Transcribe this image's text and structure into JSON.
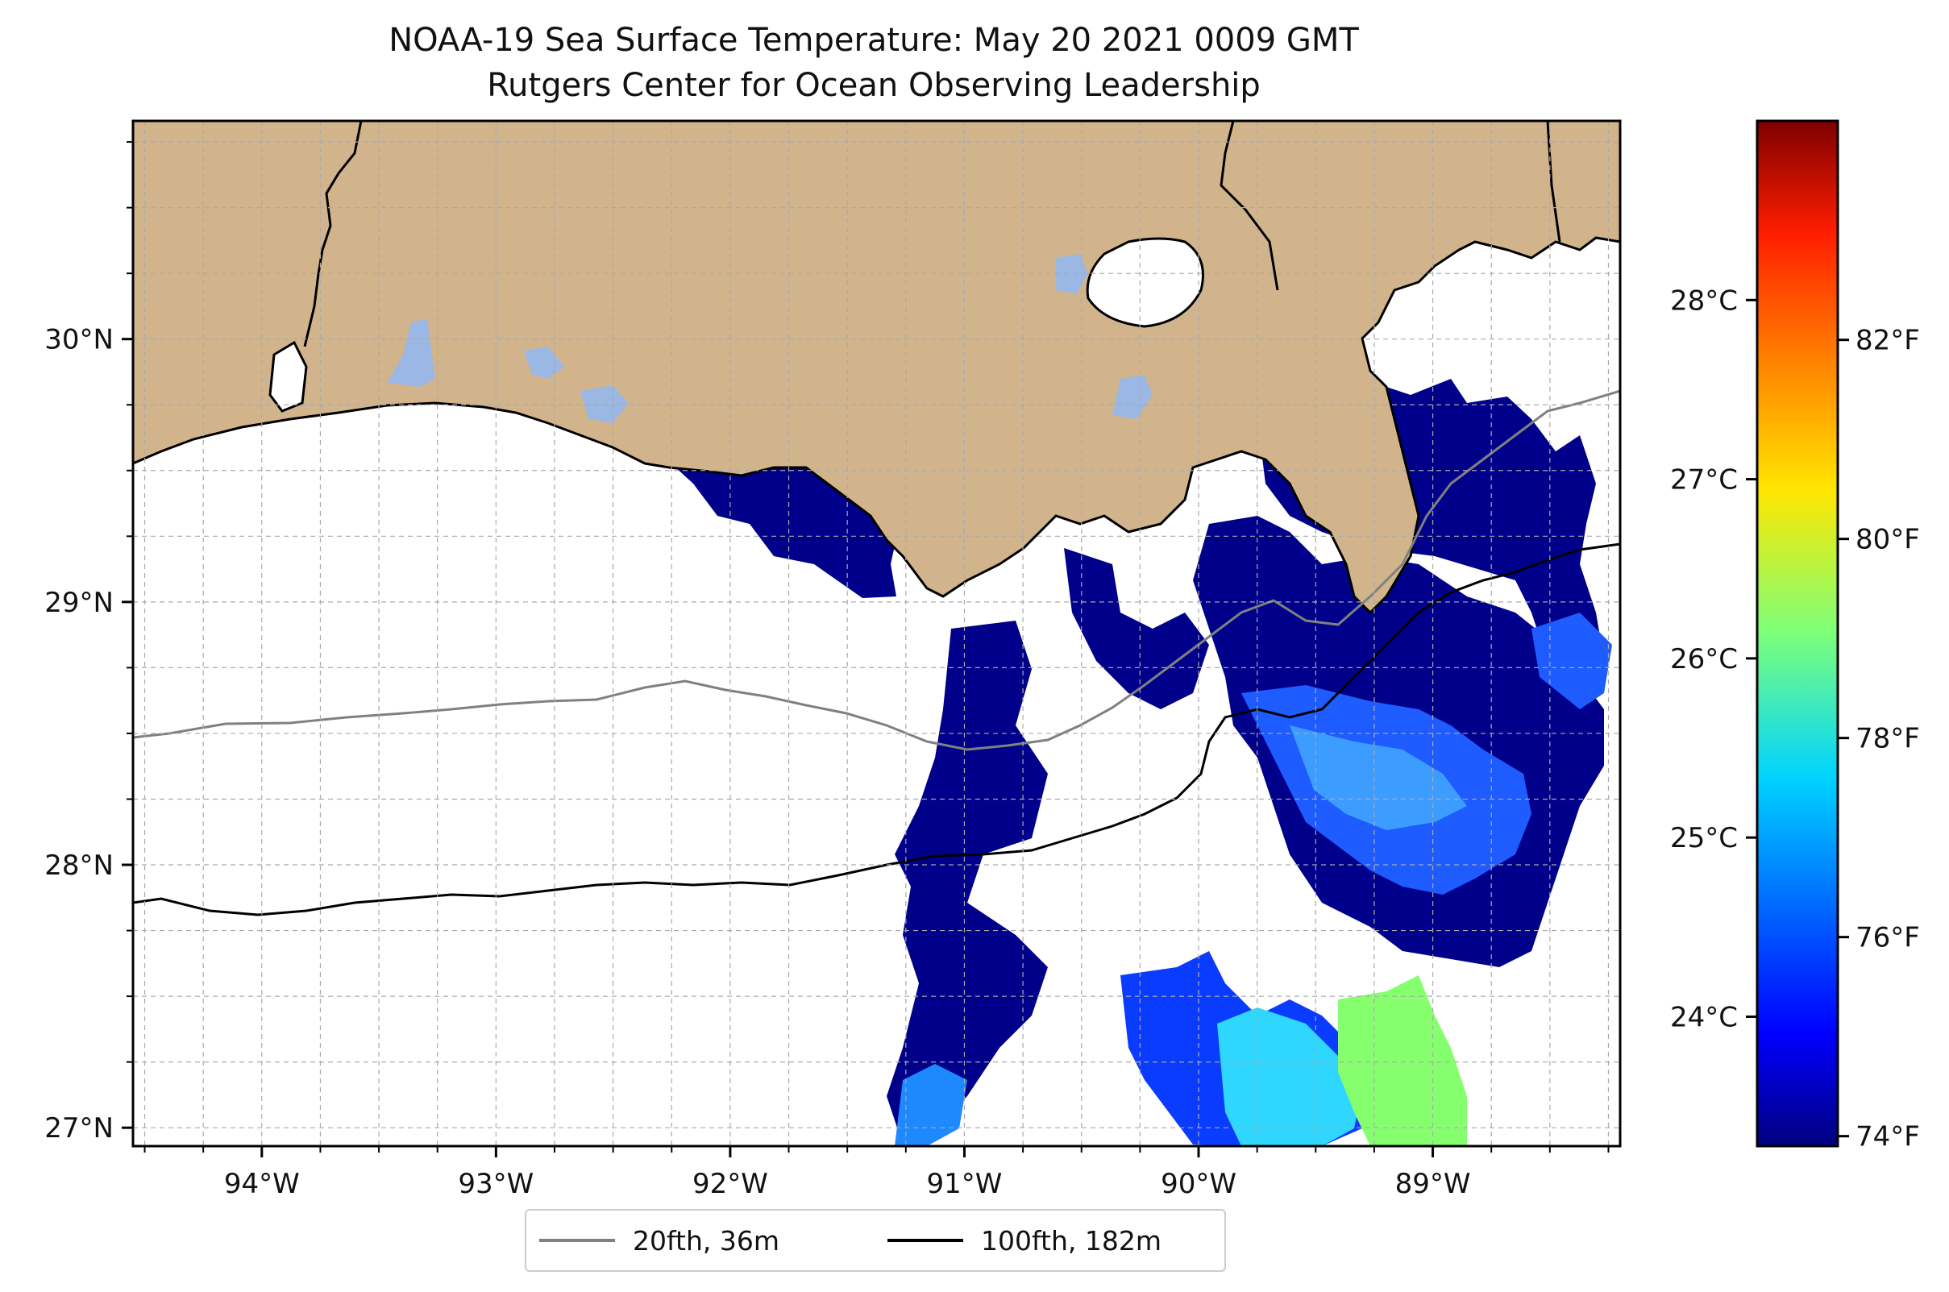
{
  "title": "NOAA-19 Sea Surface Temperature: May 20 2021 0009 GMT",
  "subtitle": "Rutgers Center for Ocean Observing Leadership",
  "map": {
    "lon_range": [
      -94.55,
      -88.2
    ],
    "lat_range": [
      26.93,
      30.83
    ],
    "lon_ticks": [
      -94,
      -93,
      -92,
      -91,
      -90,
      -89
    ],
    "lon_tick_labels": [
      "94°W",
      "93°W",
      "92°W",
      "91°W",
      "90°W",
      "89°W"
    ],
    "lat_ticks": [
      27,
      28,
      29,
      30
    ],
    "lat_tick_labels": [
      "27°N",
      "28°N",
      "29°N",
      "30°N"
    ],
    "gridlines": "dashed",
    "land_color": "#d2b48c",
    "water_body_color": "#9bb7e3",
    "no_data_color": "#ffffff"
  },
  "colorbar": {
    "colormap": "jet",
    "range_f": [
      73.9,
      84.2
    ],
    "celsius_labels": [
      "24°C",
      "25°C",
      "26°C",
      "27°C",
      "28°C"
    ],
    "fahrenheit_labels": [
      "74°F",
      "76°F",
      "78°F",
      "80°F",
      "82°F"
    ]
  },
  "legend": {
    "placement": "bottom-center",
    "items": [
      {
        "label": "20fth, 36m",
        "color": "#808080"
      },
      {
        "label": "100fth, 182m",
        "color": "#000000"
      }
    ]
  }
}
